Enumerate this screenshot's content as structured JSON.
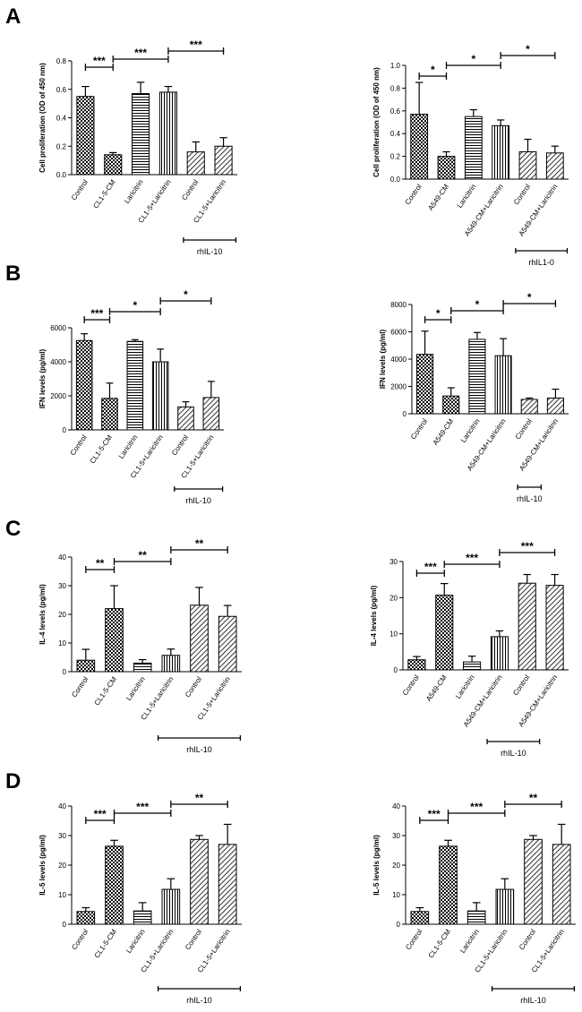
{
  "panel_letters": [
    "A",
    "B",
    "C",
    "D"
  ],
  "colors": {
    "ink": "#000000",
    "background": "#ffffff",
    "bar_fill": "#ffffff"
  },
  "chart_data": [
    {
      "id": "A-left",
      "type": "bar",
      "panel": "A",
      "ylabel": "Cell proliferation (OD of 450 nm)",
      "ylim": [
        0,
        0.8
      ],
      "yticks": [
        "0.0",
        "0.2",
        "0.4",
        "0.6",
        "0.8"
      ],
      "categories": [
        "Control",
        "CL1-5-CM",
        "Laricitrin",
        "CL1-5+Laricitrin",
        "Control",
        "CL1-5+Laricitrin"
      ],
      "values": [
        0.55,
        0.14,
        0.57,
        0.58,
        0.16,
        0.2
      ],
      "errors": [
        0.07,
        0.015,
        0.08,
        0.04,
        0.07,
        0.06
      ],
      "patterns": [
        "checker",
        "checker",
        "hlines",
        "vlines",
        "diag",
        "diag"
      ],
      "significance": [
        {
          "from": 0,
          "to": 1,
          "label": "***"
        },
        {
          "from": 1,
          "to": 3,
          "label": "***"
        },
        {
          "from": 3,
          "to": 5,
          "label": "***"
        }
      ],
      "group": {
        "label": "rhIL-10",
        "from": 4,
        "to": 5
      }
    },
    {
      "id": "A-right",
      "type": "bar",
      "panel": "A",
      "ylabel": "Cell proliferation (OD of 450 nm)",
      "ylim": [
        0,
        1.0
      ],
      "yticks": [
        "0.0",
        "0.2",
        "0.4",
        "0.6",
        "0.8",
        "1.0"
      ],
      "categories": [
        "Control",
        "A549-CM",
        "Laricitrin",
        "A549-CM+Laricitrin",
        "Control",
        "A549-CM+Laricitrin"
      ],
      "values": [
        0.57,
        0.2,
        0.55,
        0.47,
        0.24,
        0.23
      ],
      "errors": [
        0.28,
        0.04,
        0.06,
        0.05,
        0.11,
        0.06
      ],
      "patterns": [
        "checker",
        "checker",
        "hlines",
        "vlines",
        "diag",
        "diag"
      ],
      "significance": [
        {
          "from": 0,
          "to": 1,
          "label": "*"
        },
        {
          "from": 1,
          "to": 3,
          "label": "*"
        },
        {
          "from": 3,
          "to": 5,
          "label": "*"
        }
      ],
      "group": {
        "label": "rhIL1-0",
        "from": 4,
        "to": 5
      }
    },
    {
      "id": "B-left",
      "type": "bar",
      "panel": "B",
      "ylabel": "IFN levels (pg/ml)",
      "ylim": [
        0,
        6000
      ],
      "yticks": [
        "0",
        "2000",
        "4000",
        "6000"
      ],
      "categories": [
        "Control",
        "CL1-5-CM",
        "Laricitrin",
        "CL1-5+Laricitrin",
        "Control",
        "CL1-5+Laricitrin"
      ],
      "values": [
        5250,
        1850,
        5200,
        4000,
        1350,
        1900
      ],
      "errors": [
        400,
        900,
        100,
        750,
        300,
        950
      ],
      "patterns": [
        "checker",
        "checker",
        "hlines",
        "vlines",
        "diag",
        "diag"
      ],
      "significance": [
        {
          "from": 0,
          "to": 1,
          "label": "***"
        },
        {
          "from": 1,
          "to": 3,
          "label": "*"
        },
        {
          "from": 3,
          "to": 5,
          "label": "*"
        }
      ],
      "group": {
        "label": "rhIL-10",
        "from": 4,
        "to": 5
      }
    },
    {
      "id": "B-right",
      "type": "bar",
      "panel": "B",
      "ylabel": "IFN levels (pg/ml)",
      "ylim": [
        0,
        8000
      ],
      "yticks": [
        "0",
        "2000",
        "4000",
        "6000",
        "8000"
      ],
      "categories": [
        "Control",
        "A549-CM",
        "Laricitrin",
        "A549-CM+Laricitrin",
        "Control",
        "A549-CM+Laricitrin"
      ],
      "values": [
        4350,
        1300,
        5450,
        4250,
        1050,
        1150
      ],
      "errors": [
        1700,
        600,
        500,
        1250,
        100,
        650
      ],
      "patterns": [
        "checker",
        "checker",
        "hlines",
        "vlines",
        "diag",
        "diag"
      ],
      "significance": [
        {
          "from": 0,
          "to": 1,
          "label": "*"
        },
        {
          "from": 1,
          "to": 3,
          "label": "*"
        },
        {
          "from": 3,
          "to": 5,
          "label": "*"
        }
      ],
      "group": {
        "label": "rhIL-10",
        "from": 4,
        "to": 4
      }
    },
    {
      "id": "C-left",
      "type": "bar",
      "panel": "C",
      "ylabel": "IL-4 levels (pg/ml)",
      "ylim": [
        0,
        40
      ],
      "yticks": [
        "0",
        "10",
        "20",
        "30",
        "40"
      ],
      "categories": [
        "Control",
        "CL1-5-CM",
        "Laricitrin",
        "CL1-5+Laricitrin",
        "Control",
        "CL1-5+Laricitrin"
      ],
      "values": [
        4,
        22,
        3,
        5.7,
        23.2,
        19.3
      ],
      "errors": [
        3.8,
        8,
        1.2,
        2.2,
        6.2,
        3.8
      ],
      "patterns": [
        "checker",
        "checker",
        "hlines",
        "vlines",
        "diag",
        "diag"
      ],
      "significance": [
        {
          "from": 0,
          "to": 1,
          "label": "**"
        },
        {
          "from": 1,
          "to": 3,
          "label": "**"
        },
        {
          "from": 3,
          "to": 5,
          "label": "**"
        }
      ],
      "group": {
        "label": "rhIL-10",
        "from": 3,
        "to": 5
      }
    },
    {
      "id": "C-right",
      "type": "bar",
      "panel": "C",
      "ylabel": "IL-4 levels (pg/ml)",
      "ylim": [
        0,
        30
      ],
      "yticks": [
        "0",
        "10",
        "20",
        "30"
      ],
      "categories": [
        "Control",
        "A549-CM",
        "Laricitrin",
        "A549-CM+Laricitrin",
        "Control",
        "A549-CM+Laricitrin"
      ],
      "values": [
        2.8,
        20.7,
        2.2,
        9.2,
        24,
        23.4
      ],
      "errors": [
        0.9,
        3.2,
        1.6,
        1.6,
        2.4,
        3
      ],
      "patterns": [
        "checker",
        "checker",
        "hlines",
        "vlines",
        "diag",
        "diag"
      ],
      "significance": [
        {
          "from": 0,
          "to": 1,
          "label": "***"
        },
        {
          "from": 1,
          "to": 3,
          "label": "***"
        },
        {
          "from": 3,
          "to": 5,
          "label": "***"
        }
      ],
      "group": {
        "label": "rhIL-10",
        "from": 3,
        "to": 4
      }
    },
    {
      "id": "D-left",
      "type": "bar",
      "panel": "D",
      "ylabel": "IL-5 levels (pg/ml)",
      "ylim": [
        0,
        40
      ],
      "yticks": [
        "0",
        "10",
        "20",
        "30",
        "40"
      ],
      "categories": [
        "Control",
        "CL1-5-CM",
        "Laricitrin",
        "CL1-5+Laricitrin",
        "Control",
        "CL1-5+Laricitrin"
      ],
      "values": [
        4.3,
        26.4,
        4.5,
        11.8,
        28.7,
        27
      ],
      "errors": [
        1.3,
        2,
        2.8,
        3.6,
        1.3,
        6.8
      ],
      "patterns": [
        "checker",
        "checker",
        "hlines",
        "vlines",
        "diag",
        "diag"
      ],
      "significance": [
        {
          "from": 0,
          "to": 1,
          "label": "***"
        },
        {
          "from": 1,
          "to": 3,
          "label": "***"
        },
        {
          "from": 3,
          "to": 5,
          "label": "**"
        }
      ],
      "group": {
        "label": "rhIL-10",
        "from": 3,
        "to": 5
      }
    },
    {
      "id": "D-right",
      "type": "bar",
      "panel": "D",
      "ylabel": "IL-5 levels (pg/ml)",
      "ylim": [
        0,
        40
      ],
      "yticks": [
        "0",
        "10",
        "20",
        "30",
        "40"
      ],
      "categories": [
        "Control",
        "CL1-5-CM",
        "Laricitrin",
        "CL1-5+Laricitrin",
        "Control",
        "CL1-5+Laricitrin"
      ],
      "values": [
        4.3,
        26.4,
        4.5,
        11.8,
        28.7,
        27
      ],
      "errors": [
        1.3,
        2,
        2.8,
        3.6,
        1.3,
        6.8
      ],
      "patterns": [
        "checker",
        "checker",
        "hlines",
        "vlines",
        "diag",
        "diag"
      ],
      "significance": [
        {
          "from": 0,
          "to": 1,
          "label": "***"
        },
        {
          "from": 1,
          "to": 3,
          "label": "***"
        },
        {
          "from": 3,
          "to": 5,
          "label": "**"
        }
      ],
      "group": {
        "label": "rhIL-10",
        "from": 3,
        "to": 5
      }
    }
  ]
}
